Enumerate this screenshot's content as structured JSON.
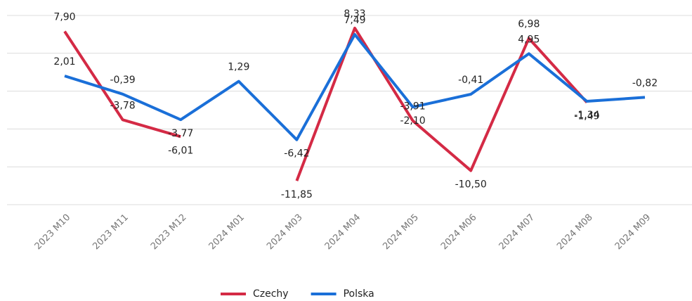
{
  "chart_data": {
    "type": "line",
    "categories": [
      "2023 M10",
      "2023 M11",
      "2023 M12",
      "2024 M01",
      "2024 M03",
      "2024 M04",
      "2024 M05",
      "2024 M06",
      "2024 M07",
      "2024 M08",
      "2024 M09"
    ],
    "series": [
      {
        "name": "Czechy",
        "color": "#d42a45",
        "values": [
          7.9,
          -3.78,
          -6.01,
          null,
          -11.85,
          8.33,
          -3.91,
          -10.5,
          6.98,
          -1.49,
          null
        ],
        "value_labels": [
          "7,90",
          "-3,78",
          "-6,01",
          null,
          "-11,85",
          "8,33",
          "-3,91",
          "-10,50",
          "6,98",
          "-1,49",
          null
        ]
      },
      {
        "name": "Polska",
        "color": "#1a6fd8",
        "values": [
          2.01,
          -0.39,
          -3.77,
          1.29,
          -6.42,
          7.49,
          -2.1,
          -0.41,
          4.95,
          -1.34,
          -0.82
        ],
        "value_labels": [
          "2,01",
          "-0,39",
          "-3,77",
          "1,29",
          "-6,42",
          "7,49",
          "-2,10",
          "-0,41",
          "4,95",
          "-1,34",
          "-0,82"
        ]
      }
    ],
    "ylim": [
      -15,
      10
    ],
    "yticks": [
      -15,
      -10,
      -5,
      0,
      5,
      10
    ],
    "grid": true,
    "legend": "bottom"
  }
}
